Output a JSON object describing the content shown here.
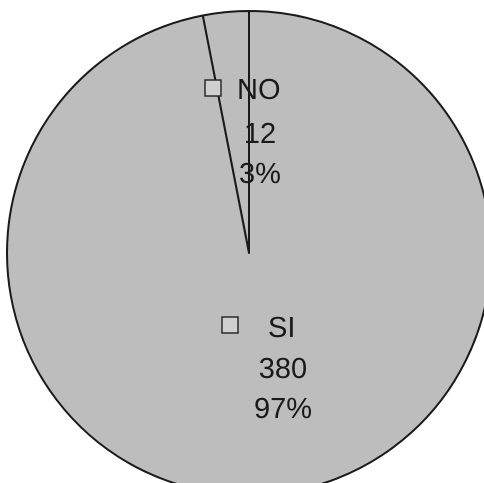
{
  "chart_data": {
    "type": "pie",
    "title": "",
    "slices": [
      {
        "label": "NO",
        "count": "12",
        "percent": "3%",
        "value": 12,
        "color": "#bdbdbd"
      },
      {
        "label": "SI",
        "count": "380",
        "percent": "97%",
        "value": 380,
        "color": "#bdbdbd"
      }
    ],
    "legend_marker_color": "#d0d0d0",
    "edge_color": "#1a1a1a"
  }
}
